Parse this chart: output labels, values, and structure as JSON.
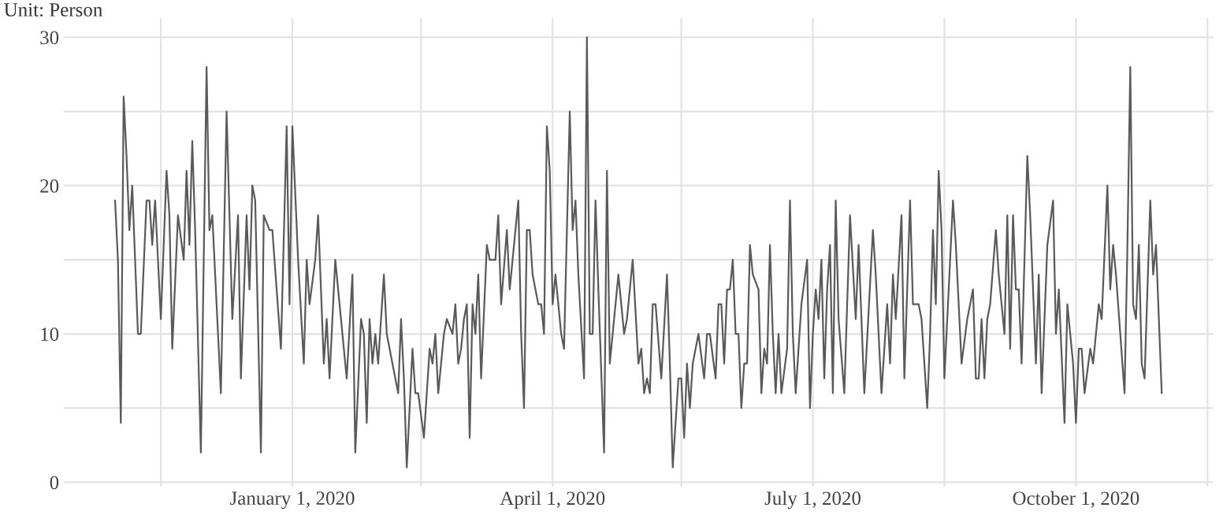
{
  "chart_data": {
    "type": "line",
    "ylabel": "Unit: Person",
    "series": [
      {
        "color": "#5a5a5a",
        "x": [
          "2019-10-31",
          "2019-11-01",
          "2019-11-02",
          "2019-11-03",
          "2019-11-04",
          "2019-11-05",
          "2019-11-06",
          "2019-11-08",
          "2019-11-09",
          "2019-11-11",
          "2019-11-12",
          "2019-11-13",
          "2019-11-14",
          "2019-11-16",
          "2019-11-18",
          "2019-11-19",
          "2019-11-20",
          "2019-11-22",
          "2019-11-24",
          "2019-11-25",
          "2019-11-26",
          "2019-11-27",
          "2019-11-28",
          "2019-11-30",
          "2019-12-02",
          "2019-12-03",
          "2019-12-04",
          "2019-12-07",
          "2019-12-09",
          "2019-12-11",
          "2019-12-13",
          "2019-12-14",
          "2019-12-16",
          "2019-12-17",
          "2019-12-18",
          "2019-12-19",
          "2019-12-21",
          "2019-12-22",
          "2019-12-24",
          "2019-12-25",
          "2019-12-28",
          "2019-12-30",
          "2019-12-31",
          "2020-01-01",
          "2020-01-03",
          "2020-01-05",
          "2020-01-06",
          "2020-01-07",
          "2020-01-09",
          "2020-01-10",
          "2020-01-12",
          "2020-01-13",
          "2020-01-14",
          "2020-01-16",
          "2020-01-18",
          "2020-01-20",
          "2020-01-22",
          "2020-01-23",
          "2020-01-25",
          "2020-01-26",
          "2020-01-27",
          "2020-01-28",
          "2020-01-29",
          "2020-01-30",
          "2020-01-31",
          "2020-02-02",
          "2020-02-03",
          "2020-02-05",
          "2020-02-07",
          "2020-02-08",
          "2020-02-09",
          "2020-02-10",
          "2020-02-12",
          "2020-02-13",
          "2020-02-14",
          "2020-02-16",
          "2020-02-18",
          "2020-02-19",
          "2020-02-20",
          "2020-02-21",
          "2020-02-23",
          "2020-02-24",
          "2020-02-26",
          "2020-02-27",
          "2020-02-28",
          "2020-02-29",
          "2020-03-01",
          "2020-03-02",
          "2020-03-03",
          "2020-03-04",
          "2020-03-05",
          "2020-03-06",
          "2020-03-07",
          "2020-03-09",
          "2020-03-10",
          "2020-03-12",
          "2020-03-13",
          "2020-03-14",
          "2020-03-16",
          "2020-03-17",
          "2020-03-18",
          "2020-03-20",
          "2020-03-21",
          "2020-03-22",
          "2020-03-23",
          "2020-03-24",
          "2020-03-25",
          "2020-03-27",
          "2020-03-28",
          "2020-03-29",
          "2020-03-30",
          "2020-03-31",
          "2020-04-01",
          "2020-04-02",
          "2020-04-04",
          "2020-04-05",
          "2020-04-07",
          "2020-04-08",
          "2020-04-09",
          "2020-04-10",
          "2020-04-12",
          "2020-04-13",
          "2020-04-14",
          "2020-04-15",
          "2020-04-16",
          "2020-04-17",
          "2020-04-19",
          "2020-04-20",
          "2020-04-21",
          "2020-04-22",
          "2020-04-24",
          "2020-04-26",
          "2020-04-27",
          "2020-04-29",
          "2020-05-01",
          "2020-05-02",
          "2020-05-03",
          "2020-05-04",
          "2020-05-05",
          "2020-05-06",
          "2020-05-07",
          "2020-05-09",
          "2020-05-11",
          "2020-05-12",
          "2020-05-13",
          "2020-05-15",
          "2020-05-16",
          "2020-05-17",
          "2020-05-18",
          "2020-05-19",
          "2020-05-20",
          "2020-05-21",
          "2020-05-22",
          "2020-05-24",
          "2020-05-25",
          "2020-05-26",
          "2020-05-28",
          "2020-05-29",
          "2020-05-30",
          "2020-05-31",
          "2020-06-01",
          "2020-06-02",
          "2020-06-03",
          "2020-06-04",
          "2020-06-05",
          "2020-06-06",
          "2020-06-07",
          "2020-06-08",
          "2020-06-09",
          "2020-06-10",
          "2020-06-12",
          "2020-06-13",
          "2020-06-14",
          "2020-06-15",
          "2020-06-16",
          "2020-06-17",
          "2020-06-18",
          "2020-06-19",
          "2020-06-20",
          "2020-06-22",
          "2020-06-23",
          "2020-06-24",
          "2020-06-25",
          "2020-06-27",
          "2020-06-29",
          "2020-06-30",
          "2020-07-01",
          "2020-07-02",
          "2020-07-03",
          "2020-07-04",
          "2020-07-05",
          "2020-07-06",
          "2020-07-07",
          "2020-07-08",
          "2020-07-09",
          "2020-07-10",
          "2020-07-12",
          "2020-07-14",
          "2020-07-16",
          "2020-07-17",
          "2020-07-19",
          "2020-07-22",
          "2020-07-23",
          "2020-07-25",
          "2020-07-27",
          "2020-07-28",
          "2020-07-29",
          "2020-07-30",
          "2020-08-01",
          "2020-08-02",
          "2020-08-03",
          "2020-08-04",
          "2020-08-05",
          "2020-08-07",
          "2020-08-08",
          "2020-08-10",
          "2020-08-11",
          "2020-08-12",
          "2020-08-13",
          "2020-08-14",
          "2020-08-15",
          "2020-08-16",
          "2020-08-17",
          "2020-08-19",
          "2020-08-20",
          "2020-08-22",
          "2020-08-24",
          "2020-08-26",
          "2020-08-27",
          "2020-08-28",
          "2020-08-29",
          "2020-08-30",
          "2020-08-31",
          "2020-09-01",
          "2020-09-03",
          "2020-09-04",
          "2020-09-05",
          "2020-09-06",
          "2020-09-07",
          "2020-09-08",
          "2020-09-09",
          "2020-09-10",
          "2020-09-11",
          "2020-09-12",
          "2020-09-14",
          "2020-09-15",
          "2020-09-17",
          "2020-09-18",
          "2020-09-19",
          "2020-09-21",
          "2020-09-23",
          "2020-09-24",
          "2020-09-25",
          "2020-09-27",
          "2020-09-28",
          "2020-09-30",
          "2020-10-01",
          "2020-10-02",
          "2020-10-03",
          "2020-10-04",
          "2020-10-06",
          "2020-10-07",
          "2020-10-09",
          "2020-10-10",
          "2020-10-12",
          "2020-10-13",
          "2020-10-14",
          "2020-10-15",
          "2020-10-18",
          "2020-10-19",
          "2020-10-20",
          "2020-10-21",
          "2020-10-22",
          "2020-10-23",
          "2020-10-24",
          "2020-10-25",
          "2020-10-27",
          "2020-10-28",
          "2020-10-29",
          "2020-10-31"
        ],
        "values": [
          19,
          15,
          4,
          26,
          22,
          17,
          20,
          10,
          10,
          19,
          19,
          16,
          19,
          11,
          21,
          18,
          9,
          18,
          15,
          21,
          16,
          23,
          17,
          2,
          28,
          17,
          18,
          6,
          25,
          11,
          18,
          7,
          18,
          13,
          20,
          19,
          2,
          18,
          17,
          17,
          9,
          24,
          12,
          24,
          15,
          8,
          15,
          12,
          15,
          18,
          8,
          11,
          7,
          15,
          11,
          7,
          14,
          2,
          11,
          10,
          4,
          11,
          8,
          10,
          8,
          14,
          10,
          8,
          6,
          11,
          7,
          1,
          9,
          6,
          6,
          3,
          9,
          8,
          10,
          6,
          10,
          11,
          10,
          12,
          8,
          9,
          11,
          12,
          3,
          12,
          10,
          14,
          7,
          16,
          15,
          15,
          18,
          12,
          17,
          13,
          15,
          19,
          10,
          5,
          17,
          17,
          14,
          12,
          12,
          10,
          24,
          21,
          12,
          14,
          10,
          9,
          25,
          17,
          19,
          14,
          7,
          30,
          10,
          10,
          19,
          13,
          2,
          21,
          8,
          10,
          14,
          10,
          11,
          15,
          8,
          9,
          6,
          7,
          6,
          12,
          12,
          7,
          14,
          8,
          1,
          7,
          7,
          3,
          8,
          5,
          8,
          9,
          10,
          7,
          10,
          10,
          7,
          12,
          12,
          8,
          13,
          13,
          15,
          10,
          10,
          5,
          8,
          8,
          16,
          14,
          13,
          6,
          9,
          8,
          16,
          10,
          6,
          10,
          6,
          9,
          19,
          10,
          6,
          12,
          15,
          5,
          10,
          13,
          11,
          15,
          7,
          13,
          16,
          6,
          19,
          11,
          6,
          18,
          11,
          16,
          6,
          17,
          14,
          6,
          12,
          8,
          14,
          11,
          18,
          7,
          13,
          19,
          12,
          12,
          11,
          5,
          10,
          17,
          12,
          21,
          17,
          7,
          11,
          19,
          16,
          8,
          11,
          13,
          7,
          7,
          11,
          7,
          11,
          12,
          17,
          14,
          12,
          10,
          18,
          9,
          18,
          13,
          13,
          8,
          22,
          18,
          8,
          14,
          6,
          16,
          19,
          10,
          13,
          4,
          12,
          8,
          4,
          9,
          9,
          6,
          9,
          8,
          12,
          11,
          20,
          13,
          16,
          14,
          6,
          16,
          28,
          12,
          11,
          16,
          8,
          7,
          19,
          14,
          16,
          6
        ]
      }
    ],
    "xlim": [
      "2019-10-13",
      "2020-11-18"
    ],
    "xticks": [
      {
        "value": "2019-11-16",
        "label": null
      },
      {
        "value": "2020-01-01",
        "label": "January 1, 2020"
      },
      {
        "value": "2020-02-15",
        "label": null
      },
      {
        "value": "2020-04-01",
        "label": "April 1, 2020"
      },
      {
        "value": "2020-05-16",
        "label": null
      },
      {
        "value": "2020-07-01",
        "label": "July 1, 2020"
      },
      {
        "value": "2020-08-16",
        "label": null
      },
      {
        "value": "2020-10-01",
        "label": "October 1, 2020"
      },
      {
        "value": "2020-11-16",
        "label": null
      }
    ],
    "ylim": [
      -0.3,
      31.3
    ],
    "yticks": [
      0,
      {
        "value": 5,
        "label": null
      },
      10,
      {
        "value": 15,
        "label": null
      },
      20,
      {
        "value": 25,
        "label": null
      },
      30
    ],
    "grid": true,
    "line_style": "solid"
  }
}
